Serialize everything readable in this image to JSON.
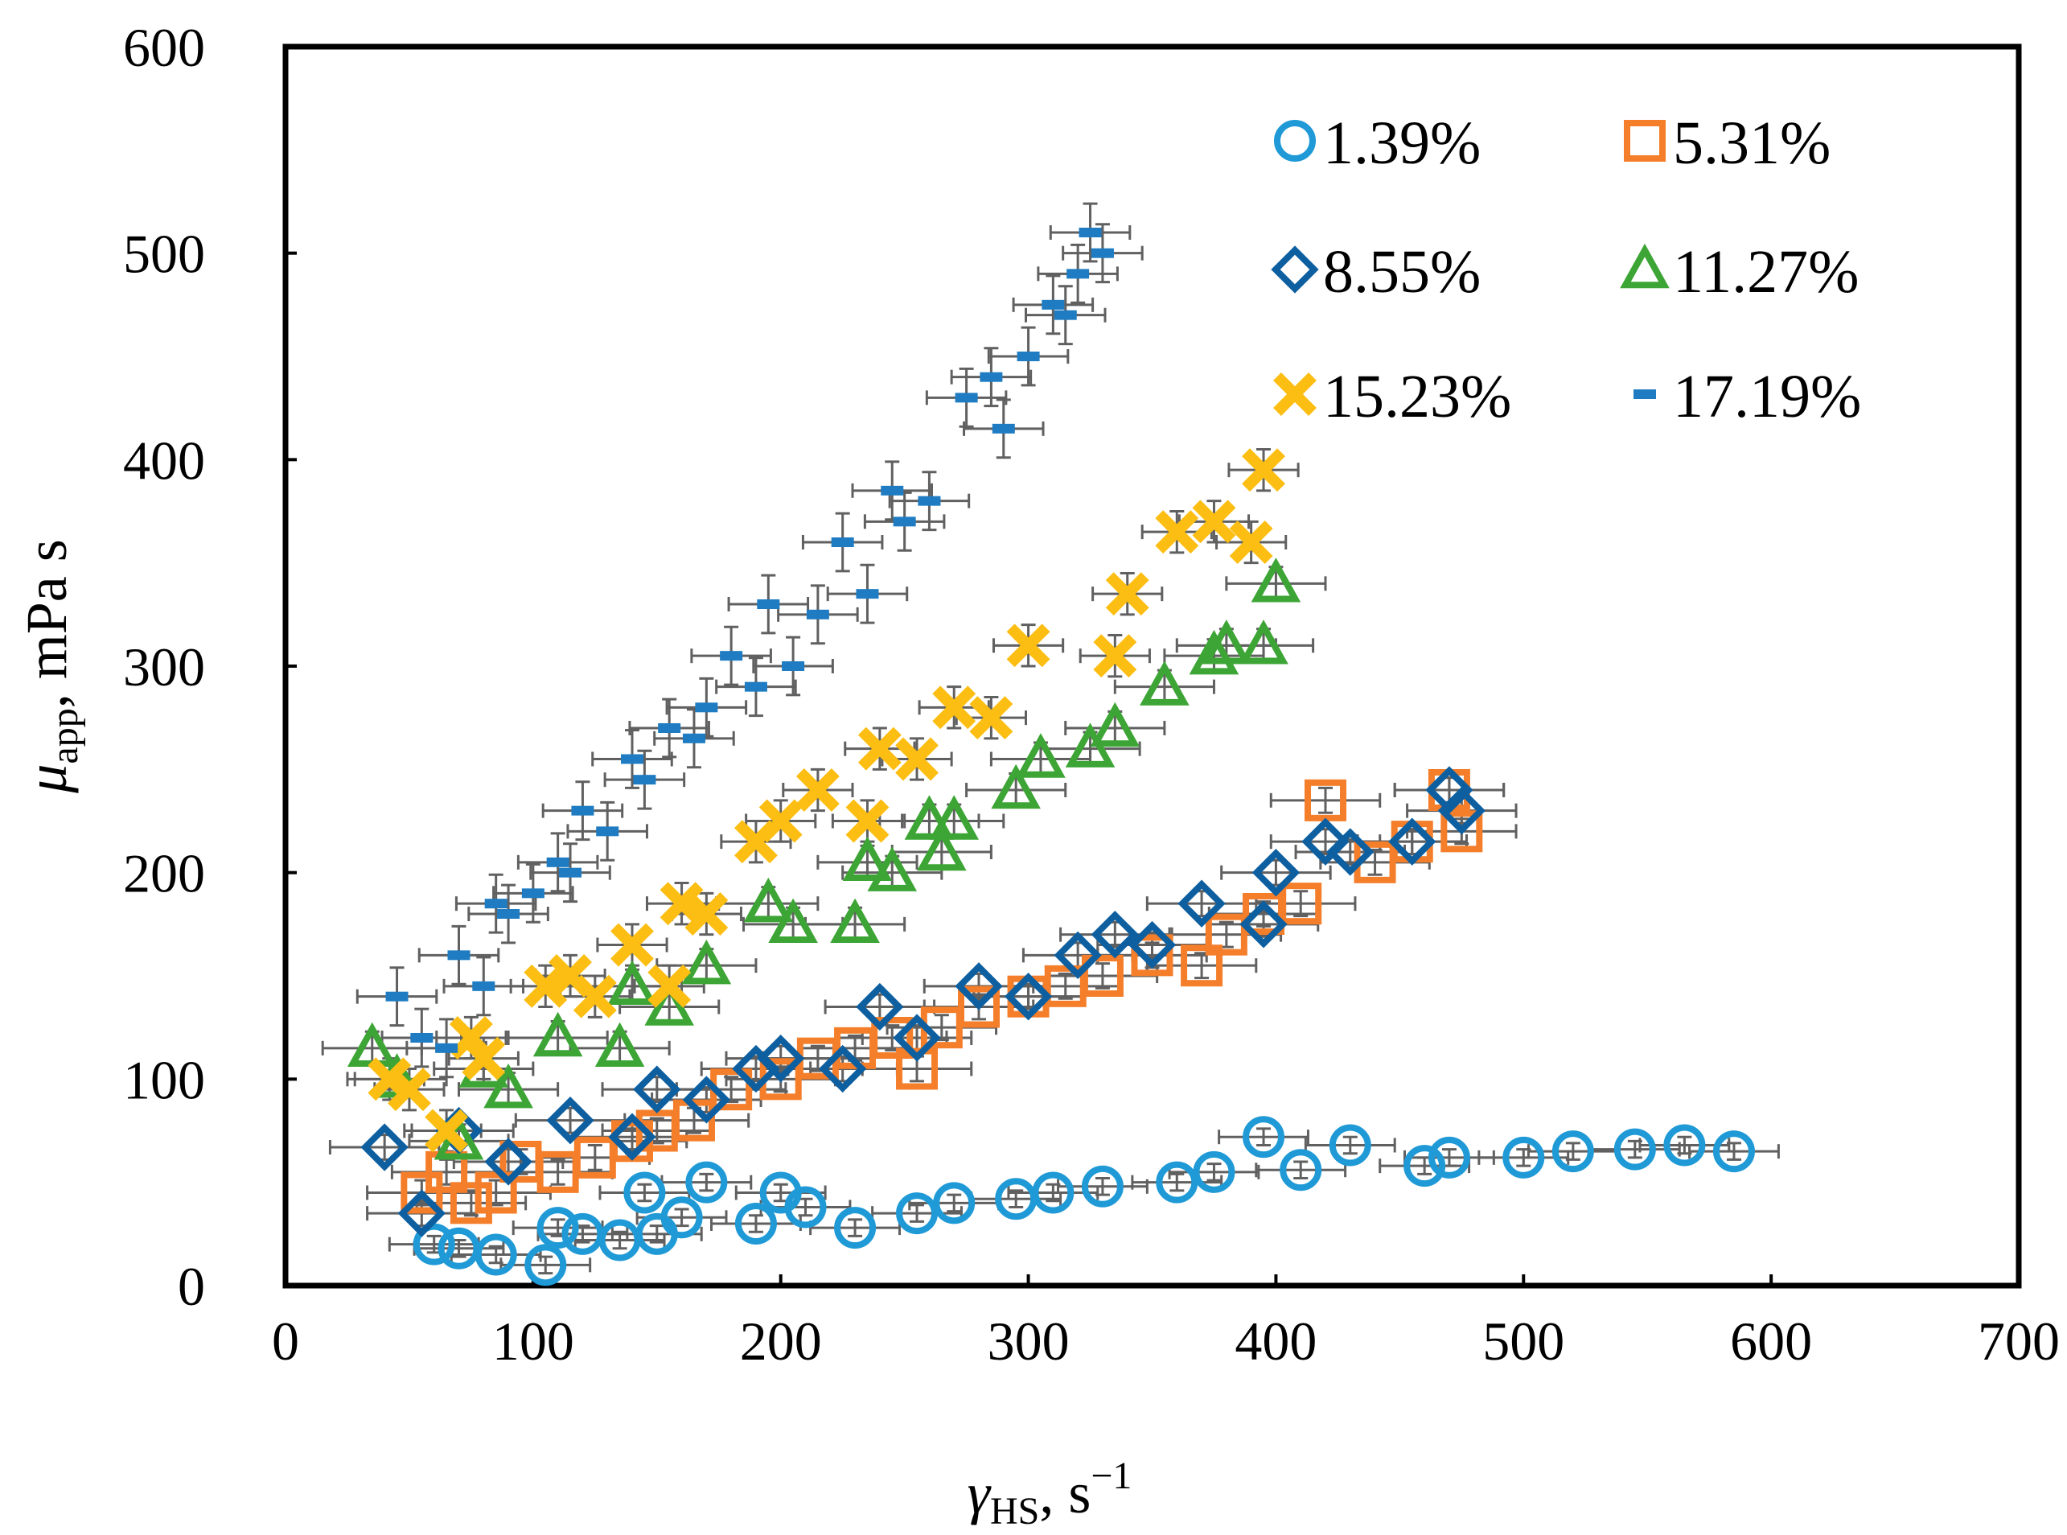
{
  "chart_data": {
    "type": "scatter",
    "title": "",
    "xlim": [
      0,
      700
    ],
    "ylim": [
      0,
      600
    ],
    "xticks": [
      "0",
      "100",
      "200",
      "300",
      "400",
      "500",
      "600",
      "700"
    ],
    "yticks": [
      "0",
      "100",
      "200",
      "300",
      "400",
      "500",
      "600"
    ],
    "xlabel": {
      "symbol": "γ",
      "subscript": "HS",
      "rest": ", s",
      "sup": "−1"
    },
    "ylabel": {
      "symbol": "μ",
      "subscript": "app",
      "rest": ", mPa s"
    },
    "legend_position": "top-right",
    "series": [
      {
        "name": "1.39%",
        "marker": "circle-open",
        "color": "#1f9ad6",
        "x": [
          60,
          70,
          85,
          105,
          110,
          120,
          135,
          145,
          150,
          160,
          170,
          190,
          200,
          210,
          230,
          255,
          270,
          295,
          310,
          330,
          360,
          375,
          395,
          410,
          430,
          460,
          470,
          500,
          520,
          545,
          565,
          585
        ],
        "y": [
          20,
          18,
          15,
          10,
          28,
          25,
          22,
          45,
          25,
          33,
          50,
          30,
          45,
          38,
          28,
          35,
          40,
          42,
          45,
          48,
          50,
          55,
          72,
          56,
          68,
          58,
          62,
          62,
          65,
          66,
          68,
          65
        ],
        "xerr": 18,
        "yerr": 4
      },
      {
        "name": "5.31%",
        "marker": "square-open",
        "color": "#f47e2a",
        "x": [
          55,
          65,
          75,
          85,
          95,
          110,
          125,
          140,
          150,
          165,
          180,
          200,
          215,
          230,
          245,
          255,
          265,
          280,
          300,
          315,
          330,
          350,
          370,
          380,
          395,
          410,
          420,
          440,
          455,
          470,
          475
        ],
        "y": [
          45,
          55,
          40,
          45,
          60,
          55,
          62,
          70,
          75,
          80,
          95,
          100,
          110,
          115,
          120,
          105,
          125,
          135,
          140,
          145,
          150,
          160,
          155,
          170,
          180,
          185,
          235,
          205,
          215,
          240,
          220
        ],
        "xerr": 22,
        "yerr": 6
      },
      {
        "name": "8.55%",
        "marker": "diamond-open",
        "color": "#0d5fa0",
        "x": [
          40,
          55,
          70,
          90,
          115,
          140,
          150,
          170,
          190,
          200,
          225,
          240,
          255,
          280,
          300,
          320,
          335,
          350,
          370,
          395,
          400,
          420,
          430,
          455,
          470,
          475
        ],
        "y": [
          67,
          35,
          75,
          60,
          80,
          72,
          95,
          90,
          105,
          110,
          105,
          135,
          120,
          145,
          140,
          160,
          170,
          165,
          185,
          175,
          200,
          215,
          210,
          215,
          240,
          230
        ],
        "xerr": 22,
        "yerr": 6
      },
      {
        "name": "11.27%",
        "marker": "triangle-open",
        "color": "#3da535",
        "x": [
          35,
          45,
          70,
          80,
          90,
          110,
          135,
          140,
          155,
          170,
          195,
          205,
          230,
          235,
          245,
          260,
          265,
          270,
          295,
          305,
          325,
          335,
          355,
          375,
          380,
          395,
          400
        ],
        "y": [
          115,
          100,
          70,
          105,
          95,
          120,
          115,
          145,
          135,
          155,
          185,
          175,
          175,
          205,
          200,
          225,
          210,
          225,
          240,
          255,
          260,
          270,
          290,
          305,
          310,
          310,
          340
        ],
        "xerr": 20,
        "yerr": 8
      },
      {
        "name": "15.23%",
        "marker": "x-cross",
        "color": "#fcbe12",
        "x": [
          42,
          50,
          65,
          75,
          80,
          105,
          115,
          125,
          140,
          155,
          160,
          170,
          190,
          200,
          215,
          235,
          240,
          255,
          270,
          285,
          300,
          335,
          340,
          360,
          375,
          390,
          395
        ],
        "y": [
          100,
          95,
          75,
          120,
          110,
          145,
          150,
          140,
          165,
          145,
          185,
          180,
          215,
          225,
          240,
          225,
          260,
          255,
          280,
          275,
          310,
          305,
          335,
          365,
          370,
          360,
          395
        ],
        "xerr": 14,
        "yerr": 10
      },
      {
        "name": "17.19%",
        "marker": "dash",
        "color": "#1f7cc2",
        "x": [
          45,
          55,
          65,
          70,
          80,
          85,
          90,
          100,
          110,
          115,
          120,
          130,
          140,
          145,
          155,
          165,
          170,
          180,
          190,
          195,
          205,
          215,
          225,
          235,
          245,
          250,
          260,
          275,
          285,
          290,
          300,
          310,
          315,
          320,
          325,
          330
        ],
        "y": [
          140,
          120,
          115,
          160,
          145,
          185,
          180,
          190,
          205,
          200,
          230,
          220,
          255,
          245,
          270,
          265,
          280,
          305,
          290,
          330,
          300,
          325,
          360,
          335,
          385,
          370,
          380,
          430,
          440,
          415,
          450,
          475,
          470,
          490,
          510,
          500
        ],
        "xerr": 16,
        "yerr": 14
      }
    ]
  }
}
